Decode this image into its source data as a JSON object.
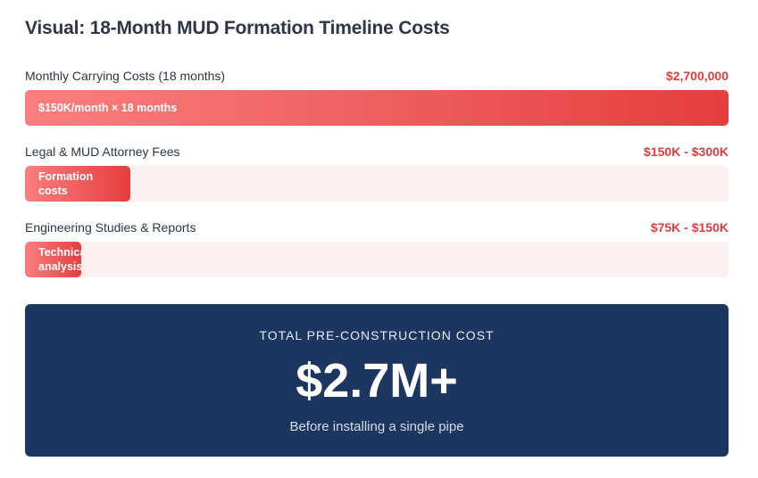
{
  "title": "Visual: 18-Month MUD Formation Timeline Costs",
  "chart_data": {
    "type": "bar",
    "orientation": "horizontal",
    "title": "Visual: 18-Month MUD Formation Timeline Costs",
    "bars": [
      {
        "label": "Monthly Carrying Costs (18 months)",
        "value_label": "$2,700,000",
        "fill_text": "$150K/month × 18 months",
        "fill_fraction": 1.0
      },
      {
        "label": "Legal & MUD Attorney Fees",
        "value_label": "$150K - $300K",
        "fill_text": "Formation costs",
        "fill_fraction": 0.15
      },
      {
        "label": "Engineering Studies & Reports",
        "value_label": "$75K - $150K",
        "fill_text": "Technical analysis",
        "fill_fraction": 0.08
      }
    ],
    "colors": {
      "bar_start": "#fb7f7f",
      "bar_end": "#e53e3e",
      "track": "#fff0f0",
      "value": "#dc3f3f"
    }
  },
  "total": {
    "label": "TOTAL PRE-CONSTRUCTION COST",
    "value": "$2.7M+",
    "subtitle": "Before installing a single pipe",
    "background": "#1c3660"
  }
}
